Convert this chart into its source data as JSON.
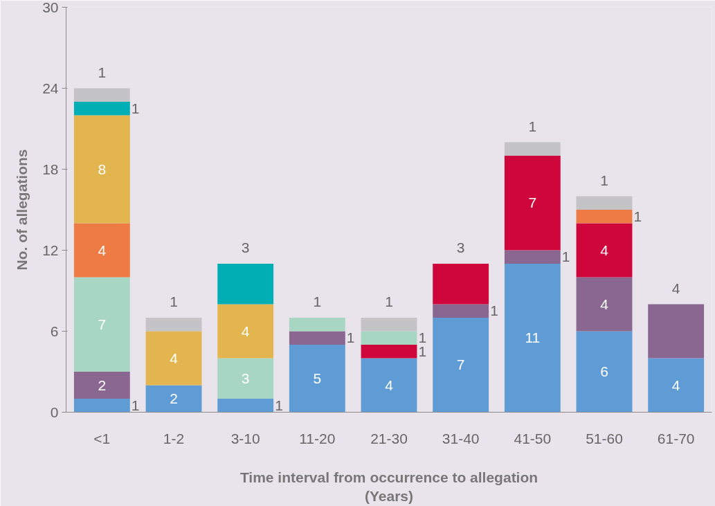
{
  "chart_data": {
    "type": "bar",
    "stacked": true,
    "data_labels": true,
    "xlabel": "Time interval from occurrence to allegation\n(Years)",
    "ylabel": "No. of allegations",
    "categories": [
      "<1",
      "1-2",
      "3-10",
      "11-20",
      "21-30",
      "31-40",
      "41-50",
      "51-60",
      "61-70"
    ],
    "ylim": [
      0,
      30
    ],
    "yticks": [
      0,
      6,
      12,
      18,
      24,
      30
    ],
    "grid": false,
    "series": [
      {
        "color": "#5f9bd4",
        "values": [
          1,
          2,
          1,
          5,
          4,
          7,
          11,
          6,
          4
        ]
      },
      {
        "color": "#8a6790",
        "values": [
          2,
          null,
          null,
          1,
          null,
          1,
          1,
          4,
          4
        ]
      },
      {
        "color": "#cf063c",
        "values": [
          null,
          null,
          null,
          null,
          1,
          3,
          7,
          4,
          null
        ]
      },
      {
        "color": "#a7d7c2",
        "values": [
          7,
          null,
          3,
          1,
          1,
          null,
          null,
          null,
          null
        ]
      },
      {
        "color": "#ee7a44",
        "values": [
          4,
          null,
          null,
          null,
          null,
          null,
          null,
          1,
          null
        ]
      },
      {
        "color": "#e2b54f",
        "values": [
          8,
          4,
          4,
          null,
          null,
          null,
          null,
          null,
          null
        ]
      },
      {
        "color": "#00aeb4",
        "values": [
          1,
          null,
          3,
          null,
          null,
          null,
          null,
          null,
          null
        ]
      },
      {
        "color": "#c4c4c6",
        "values": [
          1,
          1,
          null,
          null,
          1,
          null,
          1,
          1,
          null
        ]
      }
    ]
  }
}
